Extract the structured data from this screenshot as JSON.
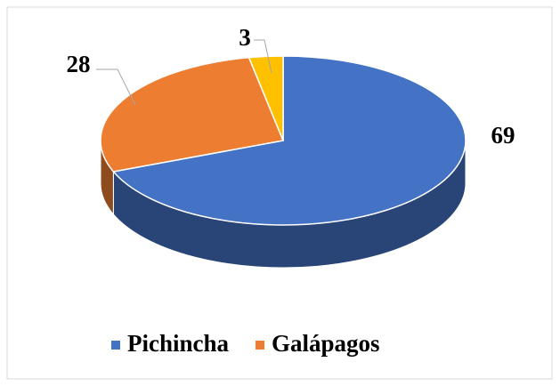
{
  "chart_data": {
    "type": "pie",
    "categories": [
      "Pichincha",
      "Galápagos",
      null
    ],
    "values": [
      69,
      28,
      3
    ],
    "colors": [
      "#4472c4",
      "#ed7d31",
      "#ffc000"
    ],
    "legend": "bottom"
  }
}
